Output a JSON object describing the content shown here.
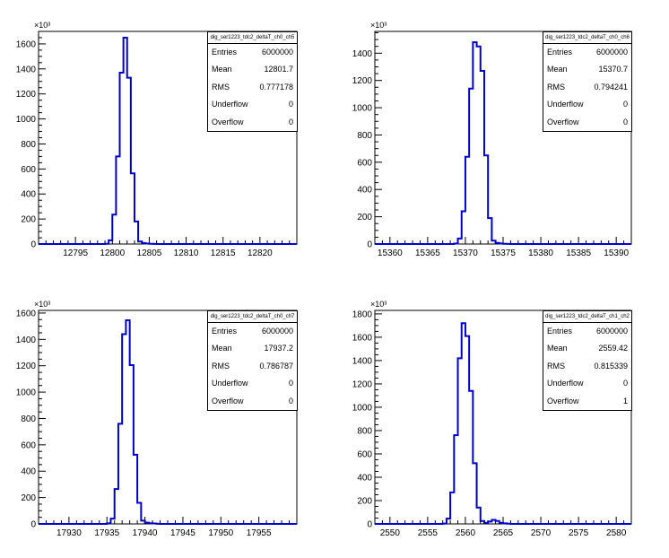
{
  "chart_data": [
    {
      "type": "bar",
      "title": "",
      "xlabel": "",
      "ylabel": "",
      "y_exponent_label": "×10³",
      "xlim": [
        12790,
        12825
      ],
      "ylim": [
        0,
        1700
      ],
      "xticks": [
        12795,
        12800,
        12805,
        12810,
        12815,
        12820
      ],
      "yticks": [
        0,
        200,
        400,
        600,
        800,
        1000,
        1200,
        1400,
        1600
      ],
      "bin_width": 0.5,
      "bins_start": 12799.0,
      "values": [
        2,
        30,
        235,
        700,
        1370,
        1650,
        1330,
        565,
        180,
        20,
        8,
        4,
        2,
        1
      ],
      "line_color": "#0000cc",
      "grid": false,
      "stats": {
        "name": "dig_ser1223_tdc2_deltaT_ch0_ch5",
        "rows": [
          {
            "label": "Entries",
            "value": "6000000"
          },
          {
            "label": "Mean",
            "value": "12801.7"
          },
          {
            "label": "RMS",
            "value": "0.777178"
          },
          {
            "label": "Underflow",
            "value": "0"
          },
          {
            "label": "Overflow",
            "value": "0"
          }
        ]
      }
    },
    {
      "type": "bar",
      "title": "",
      "xlabel": "",
      "ylabel": "",
      "y_exponent_label": "×10³",
      "xlim": [
        15358,
        15392
      ],
      "ylim": [
        0,
        1560
      ],
      "xticks": [
        15360,
        15365,
        15370,
        15375,
        15380,
        15385,
        15390
      ],
      "yticks": [
        0,
        200,
        400,
        600,
        800,
        1000,
        1200,
        1400
      ],
      "bin_width": 0.5,
      "bins_start": 15368.5,
      "values": [
        3,
        40,
        240,
        640,
        1140,
        1480,
        1450,
        1270,
        650,
        190,
        25,
        8,
        4,
        2,
        1
      ],
      "line_color": "#0000cc",
      "grid": false,
      "stats": {
        "name": "dig_ser1223_tdc2_deltaT_ch0_ch6",
        "rows": [
          {
            "label": "Entries",
            "value": "6000000"
          },
          {
            "label": "Mean",
            "value": "15370.7"
          },
          {
            "label": "RMS",
            "value": "0.794241"
          },
          {
            "label": "Underflow",
            "value": "0"
          },
          {
            "label": "Overflow",
            "value": "0"
          }
        ]
      }
    },
    {
      "type": "bar",
      "title": "",
      "xlabel": "",
      "ylabel": "",
      "y_exponent_label": "×10³",
      "xlim": [
        17926,
        17960
      ],
      "ylim": [
        0,
        1620
      ],
      "xticks": [
        17930,
        17935,
        17940,
        17945,
        17950,
        17955
      ],
      "yticks": [
        0,
        200,
        400,
        600,
        800,
        1000,
        1200,
        1400,
        1600
      ],
      "bin_width": 0.5,
      "bins_start": 17935.0,
      "values": [
        4,
        40,
        265,
        760,
        1440,
        1545,
        1205,
        525,
        160,
        25,
        10,
        5,
        3,
        1
      ],
      "line_color": "#0000cc",
      "grid": false,
      "stats": {
        "name": "dig_ser1223_tdc2_deltaT_ch0_ch7",
        "rows": [
          {
            "label": "Entries",
            "value": "6000000"
          },
          {
            "label": "Mean",
            "value": "17937.2"
          },
          {
            "label": "RMS",
            "value": "0.786787"
          },
          {
            "label": "Underflow",
            "value": "0"
          },
          {
            "label": "Overflow",
            "value": "0"
          }
        ]
      }
    },
    {
      "type": "bar",
      "title": "",
      "xlabel": "",
      "ylabel": "",
      "y_exponent_label": "×10³",
      "xlim": [
        2548,
        2582
      ],
      "ylim": [
        0,
        1830
      ],
      "xticks": [
        2550,
        2555,
        2560,
        2565,
        2570,
        2575,
        2580
      ],
      "yticks": [
        0,
        200,
        400,
        600,
        800,
        1000,
        1200,
        1400,
        1600,
        1800
      ],
      "bin_width": 0.5,
      "bins_start": 2557.0,
      "values": [
        3,
        45,
        270,
        760,
        1420,
        1720,
        1610,
        1140,
        520,
        140,
        25,
        10,
        20,
        35,
        25,
        10,
        5,
        2
      ],
      "line_color": "#0000cc",
      "grid": false,
      "stats": {
        "name": "dig_ser1223_tdc2_deltaT_ch1_ch2",
        "rows": [
          {
            "label": "Entries",
            "value": "6000000"
          },
          {
            "label": "Mean",
            "value": "2559.42"
          },
          {
            "label": "RMS",
            "value": "0.815339"
          },
          {
            "label": "Underflow",
            "value": "0"
          },
          {
            "label": "Overflow",
            "value": "1"
          }
        ]
      }
    }
  ]
}
